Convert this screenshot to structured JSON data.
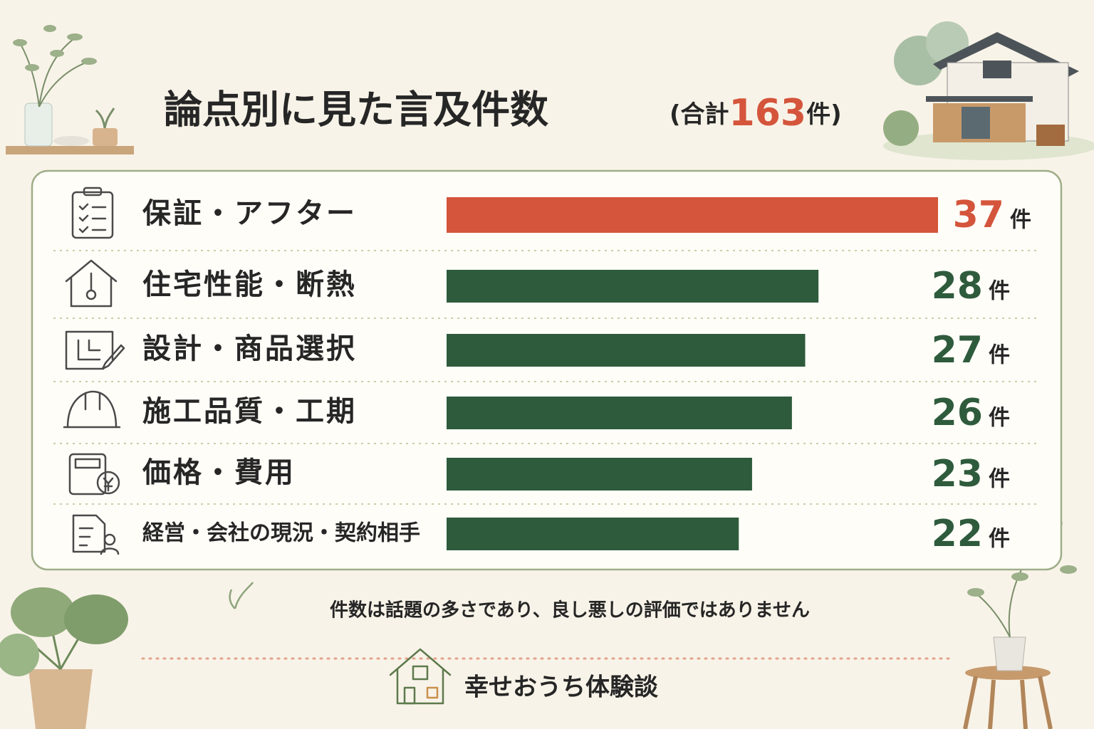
{
  "chart_data": {
    "type": "bar",
    "orientation": "horizontal",
    "title": "論点別に見た言及件数",
    "title_prefix": "(合計",
    "total": 163,
    "title_suffix": ")",
    "unit": "件",
    "categories": [
      "保証・アフター",
      "住宅性能・断熱",
      "設計・商品選択",
      "施工品質・工期",
      "価格・費用",
      "経営・会社の現況・契約相手"
    ],
    "values": [
      37,
      28,
      27,
      26,
      23,
      22
    ],
    "colors": [
      "#d4553b",
      "#2e5b3c",
      "#2e5b3c",
      "#2e5b3c",
      "#2e5b3c",
      "#2e5b3c"
    ],
    "note": "件数は話題の多さであり、良し悪しの評価ではありません",
    "brand": "幸せおうち体験談"
  }
}
